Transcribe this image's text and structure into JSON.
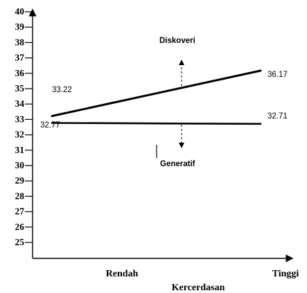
{
  "chart_data": {
    "type": "line",
    "categories": [
      "Rendah",
      "Tinggi"
    ],
    "xlabel": "Kercerdasan",
    "ylabel": "",
    "ylim": [
      25,
      40
    ],
    "yticks": [
      25,
      26,
      27,
      28,
      29,
      30,
      31,
      32,
      33,
      34,
      35,
      36,
      37,
      38,
      39,
      40
    ],
    "grid": false,
    "series": [
      {
        "name": "Diskoveri",
        "values": [
          33.22,
          36.17
        ],
        "labels": [
          "33.22",
          "36.17"
        ]
      },
      {
        "name": "Generatif",
        "values": [
          32.77,
          32.71
        ],
        "labels": [
          "32.77",
          "32.71"
        ]
      }
    ]
  }
}
